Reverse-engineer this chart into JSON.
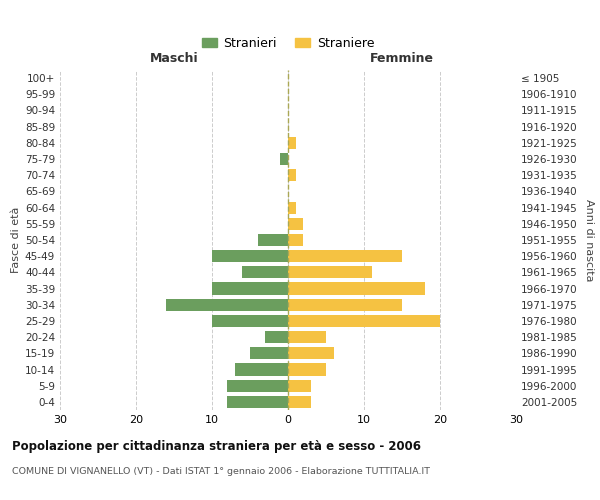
{
  "age_groups": [
    "0-4",
    "5-9",
    "10-14",
    "15-19",
    "20-24",
    "25-29",
    "30-34",
    "35-39",
    "40-44",
    "45-49",
    "50-54",
    "55-59",
    "60-64",
    "65-69",
    "70-74",
    "75-79",
    "80-84",
    "85-89",
    "90-94",
    "95-99",
    "100+"
  ],
  "birth_years": [
    "2001-2005",
    "1996-2000",
    "1991-1995",
    "1986-1990",
    "1981-1985",
    "1976-1980",
    "1971-1975",
    "1966-1970",
    "1961-1965",
    "1956-1960",
    "1951-1955",
    "1946-1950",
    "1941-1945",
    "1936-1940",
    "1931-1935",
    "1926-1930",
    "1921-1925",
    "1916-1920",
    "1911-1915",
    "1906-1910",
    "≤ 1905"
  ],
  "males": [
    8,
    8,
    7,
    5,
    3,
    10,
    16,
    10,
    6,
    10,
    4,
    0,
    0,
    0,
    0,
    1,
    0,
    0,
    0,
    0,
    0
  ],
  "females": [
    3,
    3,
    5,
    6,
    5,
    20,
    15,
    18,
    11,
    15,
    2,
    2,
    1,
    0,
    1,
    0,
    1,
    0,
    0,
    0,
    0
  ],
  "male_color": "#6b9e5e",
  "female_color": "#f5c242",
  "background_color": "#ffffff",
  "grid_color": "#cccccc",
  "title": "Popolazione per cittadinanza straniera per età e sesso - 2006",
  "subtitle": "COMUNE DI VIGNANELLO (VT) - Dati ISTAT 1° gennaio 2006 - Elaborazione TUTTITALIA.IT",
  "xlabel_left": "Maschi",
  "xlabel_right": "Femmine",
  "ylabel_left": "Fasce di età",
  "ylabel_right": "Anni di nascita",
  "xlim": 30,
  "legend_stranieri": "Stranieri",
  "legend_straniere": "Straniere"
}
